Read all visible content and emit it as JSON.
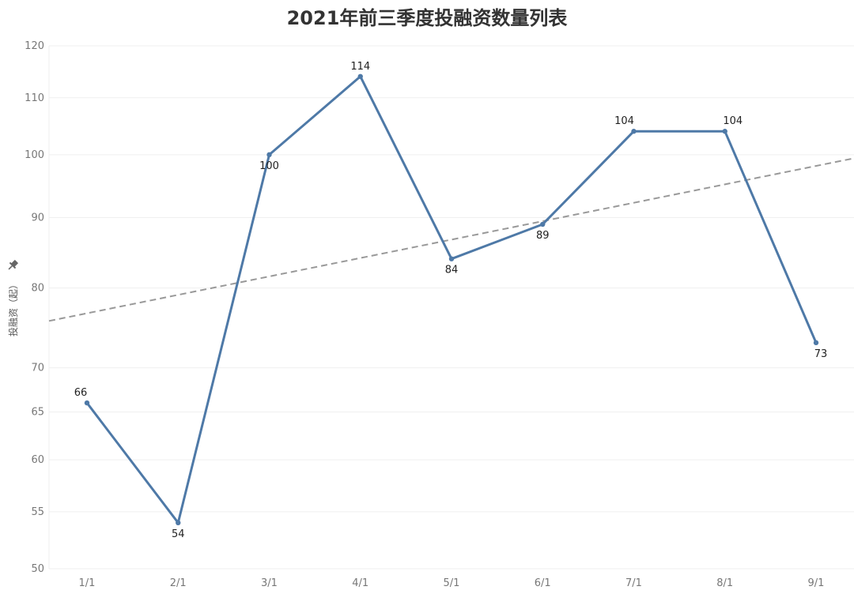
{
  "chart_data": {
    "type": "line",
    "title": "2021年前三季度投融资数量列表",
    "ylabel": "投融资（起）",
    "xlabel": "",
    "categories": [
      "1/1",
      "2/1",
      "3/1",
      "4/1",
      "5/1",
      "6/1",
      "7/1",
      "8/1",
      "9/1"
    ],
    "series": [
      {
        "values": [
          66,
          54,
          100,
          114,
          84,
          89,
          104,
          104,
          73
        ],
        "color": "#4e79a7"
      }
    ],
    "yticks": [
      50,
      55,
      60,
      65,
      70,
      80,
      90,
      100,
      110,
      120
    ],
    "ylim": [
      50,
      120
    ],
    "yscale": "log",
    "trend_line": {
      "color": "#999999",
      "style": "dashed"
    },
    "grid": true,
    "pin_icon": "pin-icon"
  }
}
